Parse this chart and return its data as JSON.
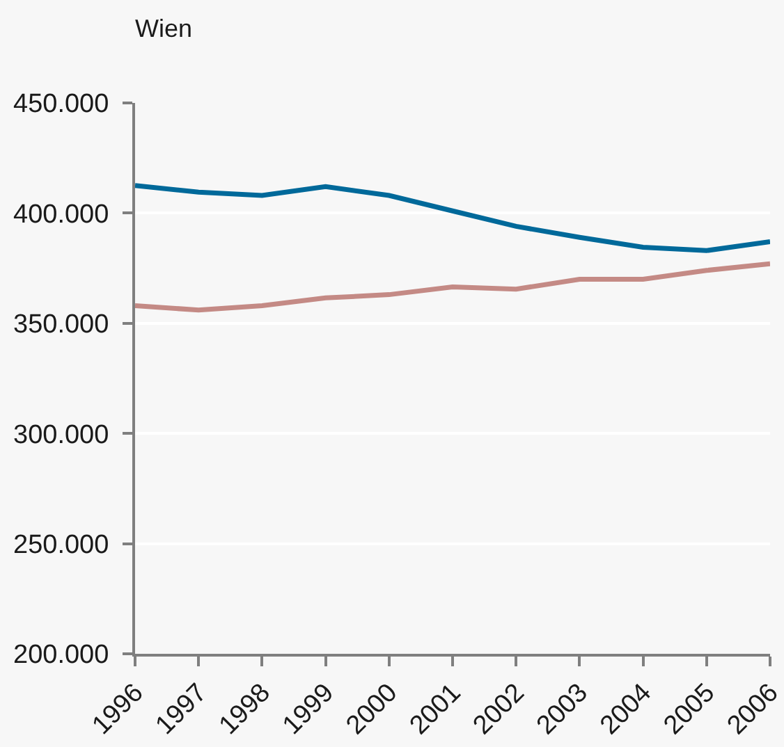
{
  "chart_data": {
    "type": "line",
    "title": "Wien",
    "x": [
      1996,
      1997,
      1998,
      1999,
      2000,
      2001,
      2002,
      2003,
      2004,
      2005,
      2006
    ],
    "series": [
      {
        "color": "#00699a",
        "values": [
          412500,
          409500,
          408000,
          412000,
          408000,
          401000,
          394000,
          389000,
          384500,
          383000,
          387000
        ]
      },
      {
        "color": "#c48a85",
        "values": [
          358000,
          356000,
          358000,
          361500,
          363000,
          366500,
          365500,
          370000,
          370000,
          374000,
          377000
        ]
      }
    ],
    "xlim": [
      1996,
      2006
    ],
    "xticks": [
      1996,
      1997,
      1998,
      1999,
      2000,
      2001,
      2002,
      2003,
      2004,
      2005,
      2006
    ],
    "ylim": [
      200000,
      450000
    ],
    "yticks": [
      {
        "value": 200000,
        "label": "200.000"
      },
      {
        "value": 250000,
        "label": "250.000"
      },
      {
        "value": 300000,
        "label": "300.000"
      },
      {
        "value": 350000,
        "label": "350.000"
      },
      {
        "value": 400000,
        "label": "400.000"
      },
      {
        "value": 450000,
        "label": "450.000"
      }
    ],
    "grid": "y",
    "marker": "none",
    "line_style": "solid"
  }
}
